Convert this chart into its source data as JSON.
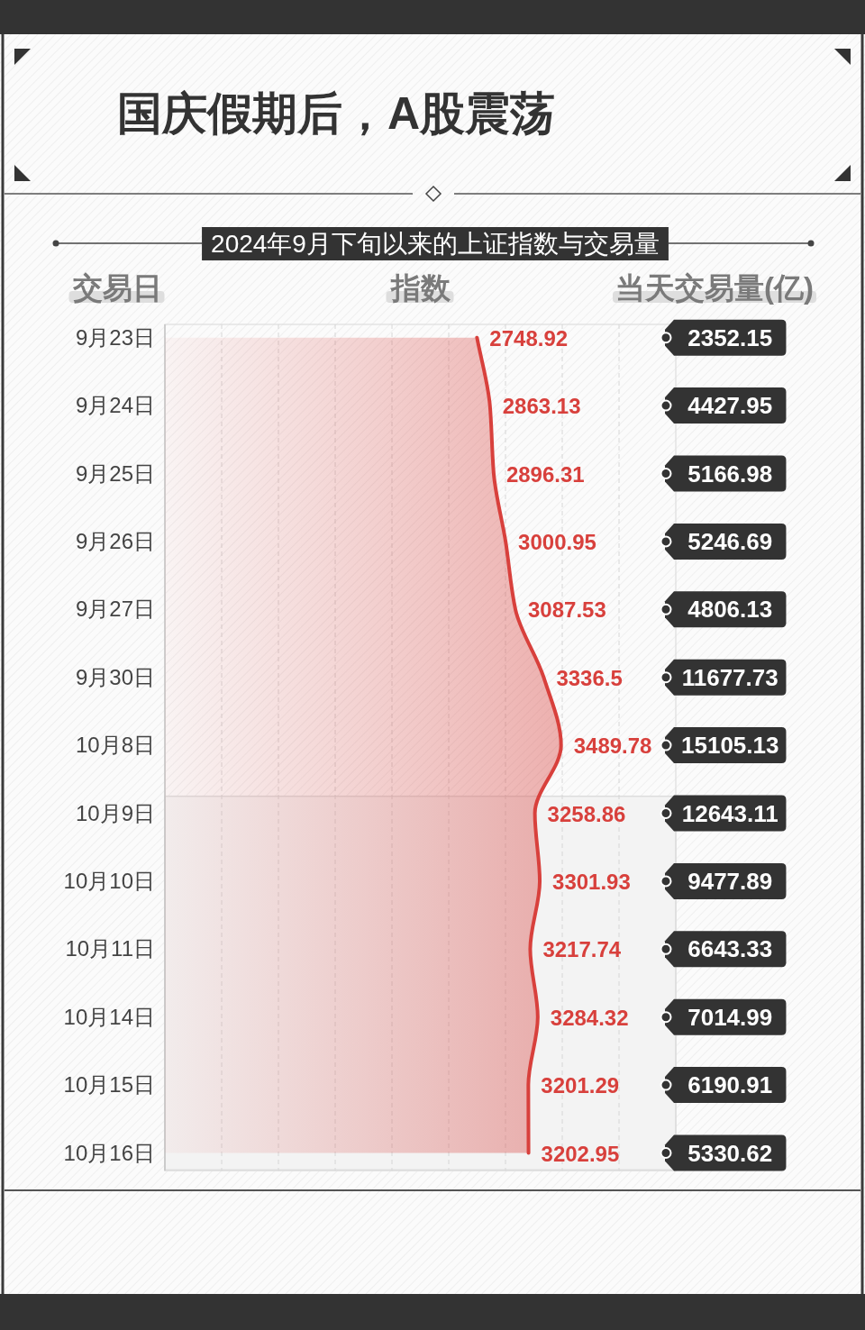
{
  "chart_data": [
    {
      "type": "area",
      "orientation": "horizontal",
      "title": "国庆假期后，A股震荡",
      "subtitle": "2024年9月下旬以来的上证指数与交易量",
      "ylabel": "交易日",
      "xlabel": "指数",
      "categories": [
        "9月23日",
        "9月24日",
        "9月25日",
        "9月26日",
        "9月27日",
        "9月30日",
        "10月8日",
        "10月9日",
        "10月10日",
        "10月11日",
        "10月14日",
        "10月15日",
        "10月16日"
      ],
      "values": [
        2748.92,
        2863.13,
        2896.31,
        3000.95,
        3087.53,
        3336.5,
        3489.78,
        3258.86,
        3301.93,
        3217.74,
        3284.32,
        3201.29,
        3202.95
      ],
      "color": "#d8403c",
      "data_labels": true,
      "xlim": [
        0,
        4500
      ],
      "xticks": [
        {
          "value": 500,
          "label": null
        },
        {
          "value": 1000,
          "label": null
        },
        {
          "value": 1500,
          "label": null
        },
        {
          "value": 2000,
          "label": null
        },
        {
          "value": 2500,
          "label": null
        },
        {
          "value": 3000,
          "label": null
        },
        {
          "value": 3500,
          "label": null
        },
        {
          "value": 4000,
          "label": null
        }
      ],
      "grid": "x",
      "tick_labels": "y",
      "bands": [
        {
          "axis": "y",
          "from": "10月9日",
          "to": "10月16日",
          "color": "#f3f3f3"
        }
      ]
    },
    {
      "type": "other",
      "title": "当天交易量(亿)",
      "values": [
        2352.15,
        4427.95,
        5166.98,
        5246.69,
        4806.13,
        11677.73,
        15105.13,
        12643.11,
        9477.89,
        6643.33,
        7014.99,
        6190.91,
        5330.62
      ],
      "color": "#333333",
      "data_labels": true
    }
  ]
}
